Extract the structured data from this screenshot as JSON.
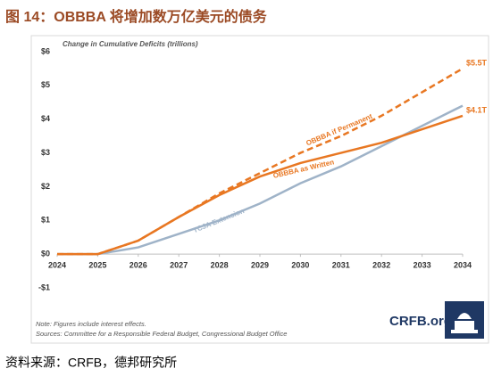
{
  "header": {
    "title": "图 14：OBBBA 将增加数万亿美元的债务"
  },
  "chart_data": {
    "type": "line",
    "y_label": "Change in Cumulative Deficits (trillions)",
    "x": [
      2024,
      2025,
      2026,
      2027,
      2028,
      2029,
      2030,
      2031,
      2032,
      2033,
      2034
    ],
    "xlim": [
      2024,
      2034
    ],
    "xticks": [
      2024,
      2025,
      2026,
      2027,
      2028,
      2029,
      2030,
      2031,
      2032,
      2033,
      2034
    ],
    "ylim": [
      -1,
      6
    ],
    "yticks": [
      {
        "value": -1,
        "label": "-$1"
      },
      {
        "value": 0,
        "label": "$0"
      },
      {
        "value": 1,
        "label": "$1"
      },
      {
        "value": 2,
        "label": "$2"
      },
      {
        "value": 3,
        "label": "$3"
      },
      {
        "value": 4,
        "label": "$4"
      },
      {
        "value": 5,
        "label": "$5"
      },
      {
        "value": 6,
        "label": "$6"
      }
    ],
    "series": [
      {
        "name": "OBBBA if Permanent",
        "color": "#e87722",
        "dash": true,
        "values": [
          0,
          0,
          0.4,
          1.1,
          1.8,
          2.4,
          3.0,
          3.5,
          4.1,
          4.8,
          5.5
        ]
      },
      {
        "name": "OBBBA as Written",
        "color": "#e87722",
        "dash": false,
        "values": [
          0,
          0,
          0.4,
          1.1,
          1.75,
          2.3,
          2.7,
          3.0,
          3.3,
          3.7,
          4.1
        ]
      },
      {
        "name": "TCJA Extension",
        "color": "#9fb3c8",
        "dash": false,
        "values": [
          0,
          0,
          0.2,
          0.6,
          1.0,
          1.5,
          2.1,
          2.6,
          3.2,
          3.8,
          4.4
        ]
      }
    ],
    "annotations": [
      "$5.5T",
      "$4.1T"
    ],
    "notes": [
      "Note: Figures include interest effects.",
      "Sources: Committee for a Responsible Federal Budget, Congressional Budget Office"
    ],
    "logo": "CRFB.org"
  },
  "footer": {
    "source": "资料来源：CRFB，德邦研究所"
  }
}
